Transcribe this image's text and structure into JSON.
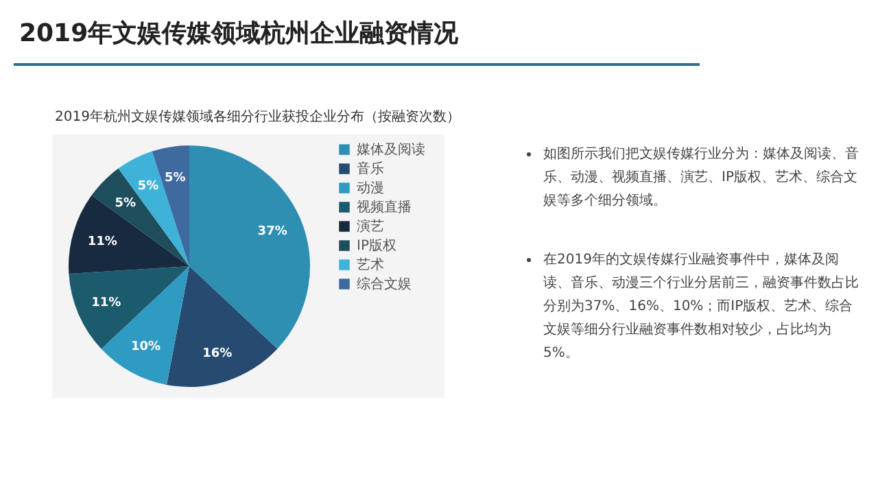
{
  "chart_data": {
    "type": "pie",
    "title": "2019年文娱传媒领域杭州企业融资情况",
    "subtitle": "2019年杭州文娱传媒领域各细分行业获投企业分布（按融资次数）",
    "categories": [
      "媒体及阅读",
      "音乐",
      "动漫",
      "视频直播",
      "演艺",
      "IP版权",
      "艺术",
      "综合文娱"
    ],
    "values": [
      37,
      16,
      10,
      11,
      11,
      5,
      5,
      5
    ],
    "value_labels": [
      "37%",
      "16%",
      "10%",
      "11%",
      "11%",
      "5%",
      "5%",
      "5%"
    ],
    "colors": [
      "#2e8fb3",
      "#264a70",
      "#2f9bc3",
      "#1c5a6e",
      "#172a40",
      "#1e4e5c",
      "#3fb2d9",
      "#3e6aa0"
    ],
    "legend": "right",
    "annotations": [
      "如图所示我们把文娱传媒行业分为：媒体及阅读、音乐、动漫、视频直播、演艺、IP版权、艺术、综合文娱等多个细分领域。",
      "在2019年的文娱传媒行业融资事件中，媒体及阅读、音乐、动漫三个行业分居前三，融资事件数占比分别为37%、16%、10%；而IP版权、艺术、综合文娱等细分行业融资事件数相对较少，占比均为5%。"
    ]
  }
}
